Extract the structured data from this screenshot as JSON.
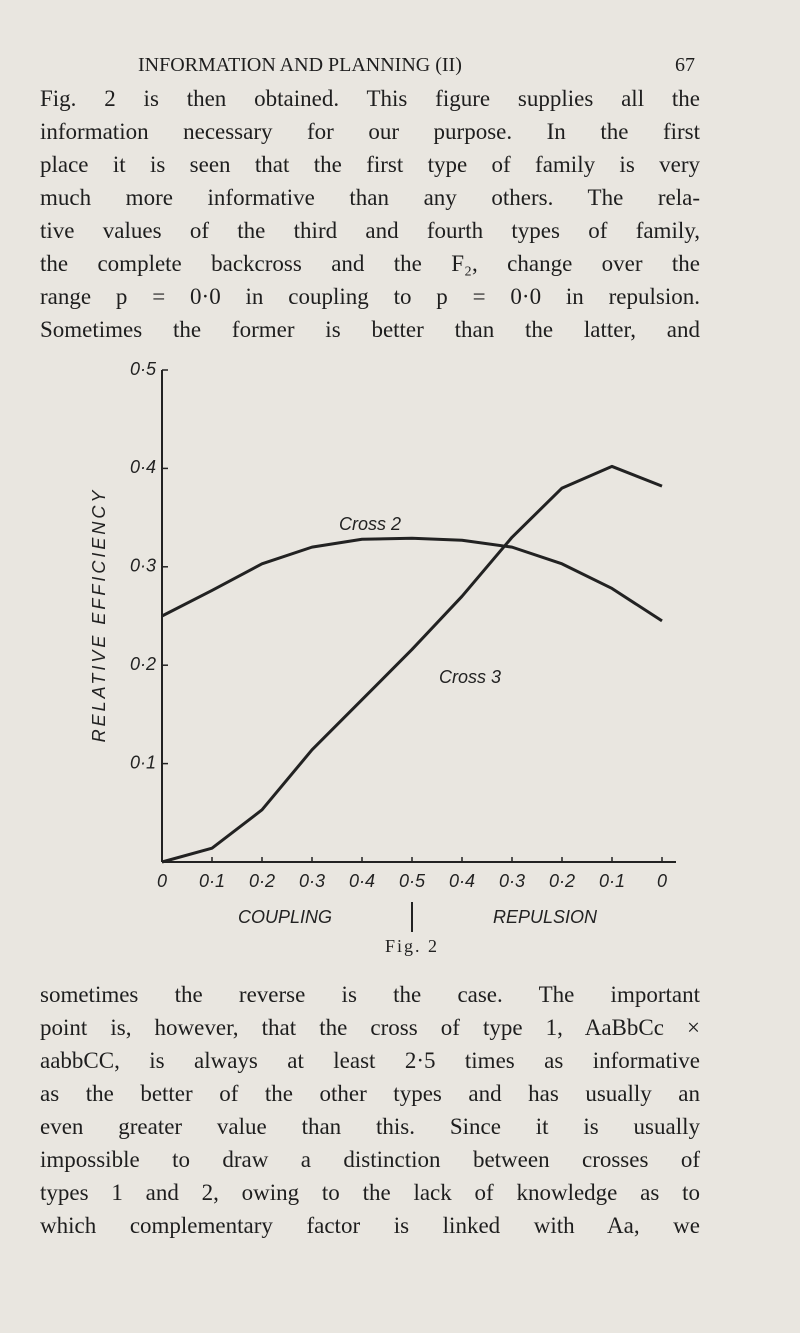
{
  "header": {
    "title": "INFORMATION AND PLANNING (II)",
    "page_number": "67"
  },
  "paragraph_top": [
    "Fig. 2 is then obtained. This figure supplies all the",
    "information necessary for our purpose. In the first",
    "place it is seen that the first type of family is very",
    "much more informative than any others. The rela-",
    "tive values of the third and fourth types of family,",
    "the complete backcross and the F₂, change over the",
    "range p = 0·0 in coupling to p = 0·0 in repulsion.",
    "Sometimes the former is better than the latter, and"
  ],
  "chart_data": {
    "type": "line",
    "y_label": "RELATIVE EFFICIENCY",
    "categories": [
      "0",
      "0·1",
      "0·2",
      "0·3",
      "0·4",
      "0·5",
      "0·4",
      "0·3",
      "0·2",
      "0·1",
      "0"
    ],
    "series": [
      {
        "name": "Cross 2",
        "color": "#222222",
        "values": [
          0.25,
          0.276,
          0.303,
          0.32,
          0.328,
          0.329,
          0.327,
          0.32,
          0.303,
          0.278,
          0.245
        ]
      },
      {
        "name": "Cross 3",
        "color": "#222222",
        "values": [
          0.0,
          0.014,
          0.053,
          0.114,
          0.165,
          0.216,
          0.27,
          0.33,
          0.38,
          0.402,
          0.382
        ]
      }
    ],
    "ylim": [
      0,
      0.5
    ],
    "yticks": [
      {
        "value": 0.1,
        "label": "0·1"
      },
      {
        "value": 0.2,
        "label": "0·2"
      },
      {
        "value": 0.3,
        "label": "0·3"
      },
      {
        "value": 0.4,
        "label": "0·4"
      },
      {
        "value": 0.5,
        "label": "0·5"
      }
    ],
    "annotations": {
      "left": "COUPLING",
      "right": "REPULSION"
    },
    "caption": "Fig. 2"
  },
  "paragraph_bottom": [
    "sometimes the reverse is the case. The important",
    "point is, however, that the cross of type 1, AaBbCc ×",
    "aabbCC, is always at least 2·5 times as informative",
    "as the better of the other types and has usually an",
    "even greater value than this. Since it is usually",
    "impossible to draw a distinction between crosses of",
    "types 1 and 2, owing to the lack of knowledge as to",
    "which complementary factor is linked with Aa, we"
  ]
}
